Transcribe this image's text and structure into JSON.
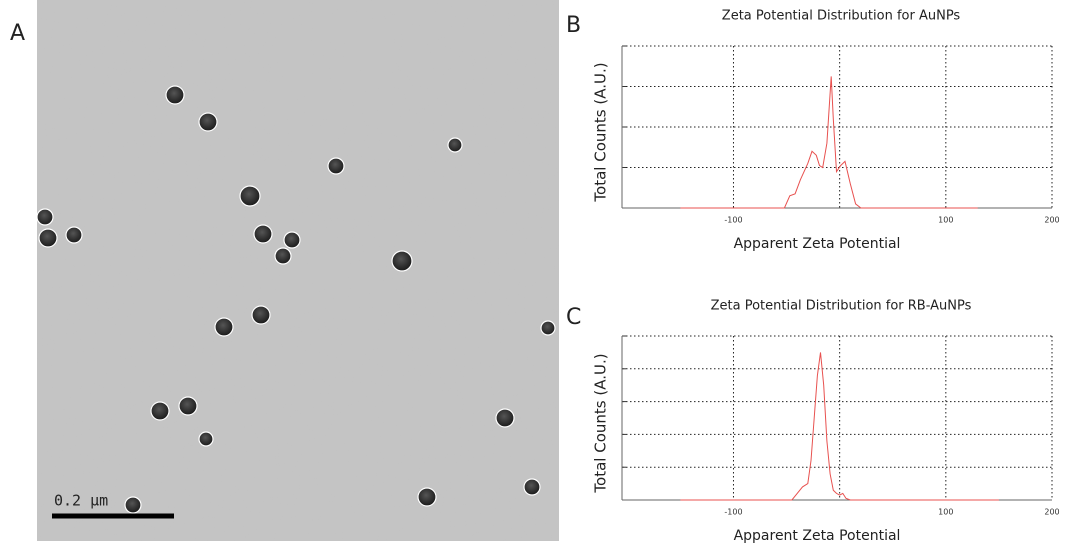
{
  "panel_labels": [
    "A",
    "B",
    "C"
  ],
  "scale_bar": "0.2 µm",
  "chart_data": [
    {
      "type": "line",
      "title": "Zeta Potential Distribution for AuNPs",
      "xlabel": "Apparent Zeta Potential",
      "ylabel": "Total Counts (A.U.)",
      "x": [
        -150,
        -52,
        -47,
        -42,
        -37,
        -30,
        -26,
        -22,
        -19,
        -16,
        -12,
        -8,
        -6,
        -3,
        1,
        5,
        10,
        15,
        20,
        130
      ],
      "values": [
        0,
        0,
        0.3,
        0.35,
        0.7,
        1.1,
        1.4,
        1.3,
        1.05,
        1.0,
        1.6,
        3.25,
        2.2,
        0.9,
        1.05,
        1.15,
        0.6,
        0.1,
        0,
        0
      ],
      "color": "#e8514f",
      "xlim": [
        -205,
        200
      ],
      "xticks": [
        -100,
        100,
        200
      ],
      "xgrid": [
        -100,
        0,
        100,
        200
      ],
      "ylim": [
        0,
        4
      ],
      "ygrid": [
        1,
        2,
        3,
        4
      ],
      "grid": true
    },
    {
      "type": "line",
      "title": "Zeta Potential Distribution for RB-AuNPs",
      "xlabel": "Apparent Zeta Potential",
      "ylabel": "Total Counts (A.U.)",
      "x": [
        -150,
        -45,
        -40,
        -35,
        -30,
        -27,
        -24,
        -21,
        -18,
        -15,
        -12,
        -9,
        -6,
        -3,
        0,
        3,
        6,
        10,
        150
      ],
      "values": [
        0,
        0,
        0.2,
        0.4,
        0.5,
        1.2,
        2.5,
        3.8,
        4.5,
        3.5,
        1.8,
        0.8,
        0.3,
        0.2,
        0.15,
        0.2,
        0.05,
        0,
        0
      ],
      "color": "#e8514f",
      "xlim": [
        -205,
        200
      ],
      "xticks": [
        -100,
        100,
        200
      ],
      "xgrid": [
        -100,
        0,
        100,
        200
      ],
      "ylim": [
        0,
        5
      ],
      "ygrid": [
        1,
        2,
        3,
        4,
        5
      ],
      "grid": true
    }
  ]
}
